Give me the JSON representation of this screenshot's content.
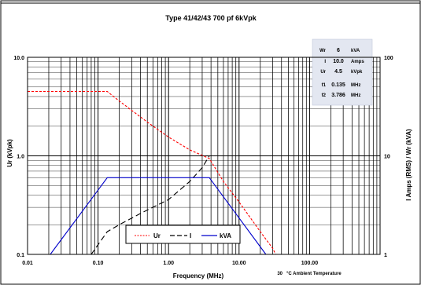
{
  "chart_data": {
    "type": "line",
    "title": "Type 41/42/43   700 pf   6kVpk",
    "xlabel": "Frequency (MHz)",
    "ylabel_left": "Ur (kVpk)",
    "ylabel_right": "I Amps (RMS) / Wr (kVA)",
    "x_scale": "log",
    "y_scale": "log",
    "xlim": [
      0.01,
      1000
    ],
    "ylim_left": [
      0.1,
      10
    ],
    "ylim_right": [
      1,
      100
    ],
    "x_ticks": [
      {
        "value": 0.01,
        "label": "0.01"
      },
      {
        "value": 0.1,
        "label": "0.10"
      },
      {
        "value": 1,
        "label": "1.00"
      },
      {
        "value": 10,
        "label": "10.00"
      },
      {
        "value": 100,
        "label": "100.00"
      }
    ],
    "y_ticks_left": [
      {
        "value": 0.1,
        "label": "0.1"
      },
      {
        "value": 1,
        "label": "1.0"
      },
      {
        "value": 10,
        "label": "10.0"
      }
    ],
    "y_ticks_right": [
      {
        "value": 1,
        "label": "1"
      },
      {
        "value": 10,
        "label": "10"
      },
      {
        "value": 100,
        "label": "100"
      }
    ],
    "grid": true,
    "series": [
      {
        "name": "Ur",
        "axis": "left",
        "color": "#ff0000",
        "dash": "short",
        "points": [
          [
            0.01,
            4.5
          ],
          [
            0.135,
            4.5
          ],
          [
            0.2,
            3.6
          ],
          [
            0.5,
            2.2
          ],
          [
            1,
            1.55
          ],
          [
            2,
            1.15
          ],
          [
            3.786,
            0.94
          ],
          [
            6,
            0.55
          ],
          [
            10,
            0.34
          ],
          [
            20,
            0.17
          ],
          [
            30,
            0.115
          ],
          [
            33,
            0.1
          ]
        ]
      },
      {
        "name": "I",
        "axis": "right",
        "color": "#000000",
        "dash": "long",
        "points": [
          [
            0.08,
            1
          ],
          [
            0.135,
            1.7
          ],
          [
            0.2,
            2.0
          ],
          [
            0.4,
            2.6
          ],
          [
            1,
            3.6
          ],
          [
            2,
            5.5
          ],
          [
            3,
            7.6
          ],
          [
            3.786,
            10
          ],
          [
            10,
            10
          ],
          [
            100,
            10
          ]
        ]
      },
      {
        "name": "kVA",
        "axis": "right",
        "color": "#0000cc",
        "dash": "solid",
        "points": [
          [
            0.021,
            1
          ],
          [
            0.135,
            6
          ],
          [
            3.786,
            6
          ],
          [
            24,
            1
          ]
        ]
      }
    ],
    "legend": {
      "position": "bottom-center",
      "entries": [
        "Ur",
        "I",
        "kVA"
      ]
    },
    "info_box": {
      "position": "top-right",
      "rows": [
        {
          "label": "Wr",
          "value": "6",
          "unit": "kVA"
        },
        {
          "label": "I",
          "value": "10.0",
          "unit": "Amps"
        },
        {
          "label": "Ur",
          "value": "4.5",
          "unit": "kVpk"
        },
        {
          "label": "f1",
          "value": "0.135",
          "unit": "MHz"
        },
        {
          "label": "f2",
          "value": "3.786",
          "unit": "MHz"
        }
      ]
    },
    "ambient_temp": "30",
    "ambient_label": "°C  Ambient Temperature"
  }
}
